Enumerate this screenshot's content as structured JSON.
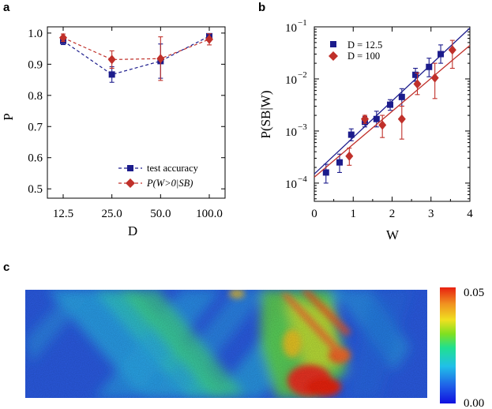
{
  "figure": {
    "panels": [
      "a",
      "b",
      "c"
    ]
  },
  "chart_data": [
    {
      "panel": "a",
      "type": "line",
      "xlabel": "D",
      "ylabel": "P",
      "categories": [
        "12.5",
        "25.0",
        "50.0",
        "100.0"
      ],
      "ylim": [
        0.47,
        1.02
      ],
      "yticks": [
        0.5,
        0.6,
        0.7,
        0.8,
        0.9,
        1.0
      ],
      "ytick_labels": [
        "0.5",
        "0.6",
        "0.7",
        "0.8",
        "0.9",
        "1.0"
      ],
      "legend_position": "bottom-right",
      "series": [
        {
          "name": "test accuracy",
          "color": "#1c1c8c",
          "marker": "square",
          "linestyle": "dashed",
          "values": [
            0.975,
            0.867,
            0.91,
            0.99
          ],
          "errors": [
            0.012,
            0.025,
            0.055,
            0.008
          ]
        },
        {
          "name": "P(W>0|SB)",
          "color": "#c0302a",
          "marker": "diamond",
          "linestyle": "dashed",
          "values": [
            0.985,
            0.915,
            0.918,
            0.98
          ],
          "errors": [
            0.012,
            0.028,
            0.07,
            0.018
          ]
        }
      ]
    },
    {
      "panel": "b",
      "type": "scatter",
      "xlabel": "W",
      "ylabel": "P(SB|W)",
      "yscale": "log",
      "xlim": [
        0,
        4
      ],
      "xticks": [
        0,
        1,
        2,
        3,
        4
      ],
      "ylim_exp": [
        -4.35,
        -1
      ],
      "ytick_exps": [
        -4,
        -3,
        -2,
        -1
      ],
      "legend_position": "top-left",
      "series": [
        {
          "name": "D = 12.5",
          "color": "#1c1c8c",
          "marker": "square",
          "x": [
            0.3,
            0.65,
            0.95,
            1.3,
            1.6,
            1.95,
            2.25,
            2.6,
            2.95,
            3.25
          ],
          "y": [
            0.00016,
            0.00025,
            0.00085,
            0.0015,
            0.0017,
            0.0032,
            0.0045,
            0.012,
            0.017,
            0.03
          ],
          "err_low": [
            0.0001,
            0.00016,
            0.00065,
            0.0012,
            0.0012,
            0.0025,
            0.003,
            0.009,
            0.011,
            0.02
          ],
          "err_high": [
            0.00023,
            0.00036,
            0.0011,
            0.0019,
            0.0024,
            0.004,
            0.0065,
            0.016,
            0.025,
            0.045
          ],
          "fit": {
            "x": [
              0,
              4
            ],
            "y": [
              0.00015,
              0.095
            ]
          }
        },
        {
          "name": "D = 100",
          "color": "#c0302a",
          "marker": "diamond",
          "x": [
            0.9,
            1.3,
            1.75,
            2.25,
            2.65,
            3.1,
            3.55
          ],
          "y": [
            0.00033,
            0.0017,
            0.0013,
            0.0017,
            0.008,
            0.0105,
            0.036
          ],
          "err_low": [
            0.00022,
            0.0014,
            0.00075,
            0.0007,
            0.005,
            0.0042,
            0.016
          ],
          "err_high": [
            0.00047,
            0.002,
            0.002,
            0.003,
            0.013,
            0.02,
            0.055
          ],
          "fit": {
            "x": [
              0,
              4
            ],
            "y": [
              0.00013,
              0.044
            ]
          }
        }
      ]
    },
    {
      "panel": "c",
      "type": "heatmap",
      "description": "strain field map",
      "colorbar": {
        "min_label": "0.00",
        "max_label": "0.05",
        "min": 0.0,
        "max": 0.05
      },
      "colormap": [
        "#1010e0",
        "#2060e8",
        "#20c0e8",
        "#20e090",
        "#80e020",
        "#f0e020",
        "#f09020",
        "#e82010"
      ]
    }
  ]
}
